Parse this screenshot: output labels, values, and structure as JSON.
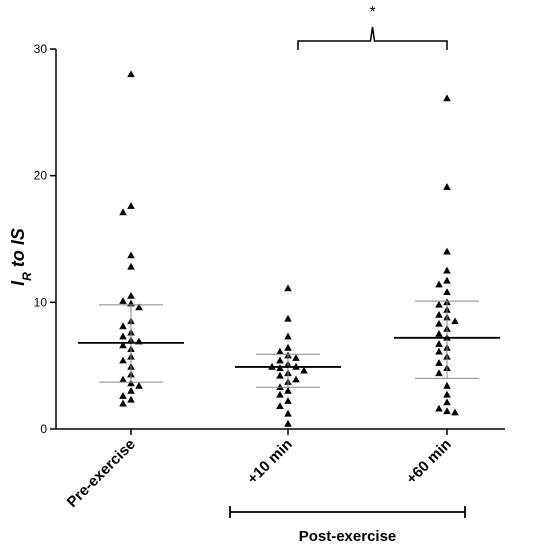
{
  "chart_data": {
    "type": "scatter",
    "title": "",
    "xlabel": "",
    "ylabel": {
      "main": "I",
      "sub": "R",
      "rest": " to IS"
    },
    "ylim": [
      0,
      30
    ],
    "yticks": [
      0,
      10,
      20,
      30
    ],
    "grid": false,
    "categories": [
      "Pre-exercise",
      "+10 min",
      "+60 min"
    ],
    "group_label": "Post-exercise",
    "group_categories": [
      "+10 min",
      "+60 min"
    ],
    "marker": "triangle",
    "color": "#000000",
    "summary": [
      {
        "category": "Pre-exercise",
        "mean": 6.8,
        "sd_low": 3.7,
        "sd_high": 9.8
      },
      {
        "category": "+10 min",
        "mean": 4.9,
        "sd_low": 3.3,
        "sd_high": 5.9
      },
      {
        "category": "+60 min",
        "mean": 7.2,
        "sd_low": 4.0,
        "sd_high": 10.1
      }
    ],
    "series": [
      {
        "category": "Pre-exercise",
        "values": [
          28.0,
          17.6,
          17.1,
          13.7,
          12.8,
          10.5,
          10.1,
          9.9,
          9.6,
          8.5,
          8.1,
          7.6,
          7.3,
          7.0,
          6.9,
          6.6,
          6.3,
          5.7,
          5.4,
          4.9,
          4.3,
          3.9,
          3.6,
          3.4,
          3.0,
          2.6,
          2.3,
          2.0
        ]
      },
      {
        "category": "+10 min",
        "values": [
          11.1,
          8.7,
          7.3,
          6.4,
          6.1,
          5.8,
          5.6,
          5.4,
          5.1,
          4.9,
          4.9,
          4.8,
          4.6,
          4.4,
          4.2,
          3.9,
          3.7,
          3.3,
          3.0,
          2.7,
          2.2,
          1.8,
          1.2,
          0.4
        ]
      },
      {
        "category": "+60 min",
        "values": [
          26.1,
          19.1,
          14.0,
          12.5,
          11.7,
          11.4,
          10.8,
          10.0,
          9.8,
          9.4,
          9.0,
          8.8,
          8.5,
          8.3,
          7.9,
          7.5,
          7.2,
          6.7,
          6.4,
          6.1,
          5.7,
          5.2,
          4.8,
          4.4,
          3.4,
          2.7,
          2.1,
          1.6,
          1.4,
          1.3
        ]
      }
    ],
    "significance": {
      "from": "+10 min",
      "to": "+60 min",
      "label": "*"
    }
  }
}
